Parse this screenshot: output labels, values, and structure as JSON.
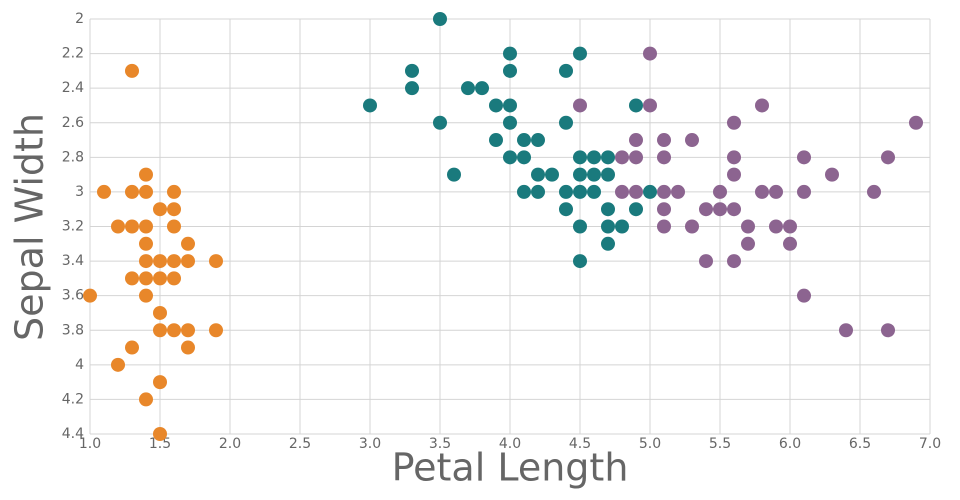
{
  "chart_data": {
    "type": "scatter",
    "x_label": "Petal Length",
    "y_label": "Sepal Width",
    "xlim": [
      1,
      7
    ],
    "ylim": [
      4.4,
      2
    ],
    "xticks": [
      {
        "value": 1,
        "label": "1.0"
      },
      1.5,
      {
        "value": 2,
        "label": "2.0"
      },
      2.5,
      {
        "value": 3,
        "label": "3.0"
      },
      3.5,
      {
        "value": 4,
        "label": "4.0"
      },
      4.5,
      {
        "value": 5,
        "label": "5.0"
      },
      5.5,
      {
        "value": 6,
        "label": "6.0"
      },
      6.5,
      {
        "value": 7,
        "label": "7.0"
      }
    ],
    "yticks": [
      2,
      2.2,
      2.4,
      2.6,
      2.8,
      3,
      3.2,
      3.4,
      3.6,
      3.8,
      4,
      4.2,
      4.4
    ],
    "grid": true,
    "series": [
      {
        "color": "#e8872a",
        "x": [
          1.3,
          1.4,
          1.1,
          1.3,
          1.4,
          1.6,
          1.5,
          1.6,
          1.2,
          1.3,
          1.4,
          1.6,
          1.4,
          1.7,
          1.4,
          1.5,
          1.6,
          1.7,
          1.9,
          1.3,
          1.4,
          1.5,
          1.6,
          1.0,
          1.4,
          1.5,
          1.5,
          1.6,
          1.7,
          1.9,
          1.3,
          1.7,
          1.2,
          1.5,
          1.4,
          1.5
        ],
        "values": [
          2.3,
          2.9,
          3.0,
          3.0,
          3.0,
          3.0,
          3.1,
          3.1,
          3.2,
          3.2,
          3.2,
          3.2,
          3.3,
          3.3,
          3.4,
          3.4,
          3.4,
          3.4,
          3.4,
          3.5,
          3.5,
          3.5,
          3.5,
          3.6,
          3.6,
          3.7,
          3.8,
          3.8,
          3.8,
          3.8,
          3.9,
          3.9,
          4.0,
          4.1,
          4.2,
          4.4
        ]
      },
      {
        "color": "#8c6490",
        "x": [
          5.0,
          4.5,
          5.0,
          5.8,
          6.9,
          5.6,
          4.9,
          5.1,
          5.3,
          4.8,
          4.9,
          5.1,
          5.6,
          6.1,
          6.7,
          5.6,
          6.3,
          4.8,
          4.9,
          5.1,
          5.2,
          5.5,
          5.8,
          5.9,
          6.1,
          6.6,
          5.1,
          5.4,
          5.5,
          5.6,
          5.1,
          5.3,
          5.7,
          5.9,
          6.0,
          5.7,
          6.0,
          5.4,
          5.6,
          6.1,
          6.4,
          6.7
        ],
        "values": [
          2.2,
          2.5,
          2.5,
          2.5,
          2.6,
          2.6,
          2.7,
          2.7,
          2.7,
          2.8,
          2.8,
          2.8,
          2.8,
          2.8,
          2.8,
          2.9,
          2.9,
          3.0,
          3.0,
          3.0,
          3.0,
          3.0,
          3.0,
          3.0,
          3.0,
          3.0,
          3.1,
          3.1,
          3.1,
          3.1,
          3.2,
          3.2,
          3.2,
          3.2,
          3.2,
          3.3,
          3.3,
          3.4,
          3.4,
          3.6,
          3.8,
          3.8
        ]
      },
      {
        "color": "#1a7a7d",
        "x": [
          3.5,
          4.0,
          4.5,
          3.3,
          4.0,
          4.4,
          3.3,
          3.7,
          3.8,
          3.0,
          3.9,
          4.0,
          4.9,
          3.5,
          4.0,
          4.4,
          3.9,
          4.1,
          4.2,
          4.0,
          4.1,
          4.5,
          4.6,
          4.7,
          3.6,
          4.2,
          4.3,
          4.5,
          4.6,
          4.7,
          4.1,
          4.2,
          4.4,
          4.5,
          4.6,
          5.0,
          4.4,
          4.7,
          4.9,
          4.5,
          4.7,
          4.8,
          4.7,
          4.5
        ],
        "values": [
          2.0,
          2.2,
          2.2,
          2.3,
          2.3,
          2.3,
          2.4,
          2.4,
          2.4,
          2.5,
          2.5,
          2.5,
          2.5,
          2.6,
          2.6,
          2.6,
          2.7,
          2.7,
          2.7,
          2.8,
          2.8,
          2.8,
          2.8,
          2.8,
          2.9,
          2.9,
          2.9,
          2.9,
          2.9,
          2.9,
          3.0,
          3.0,
          3.0,
          3.0,
          3.0,
          3.0,
          3.1,
          3.1,
          3.1,
          3.2,
          3.2,
          3.2,
          3.3,
          3.4
        ]
      }
    ]
  }
}
